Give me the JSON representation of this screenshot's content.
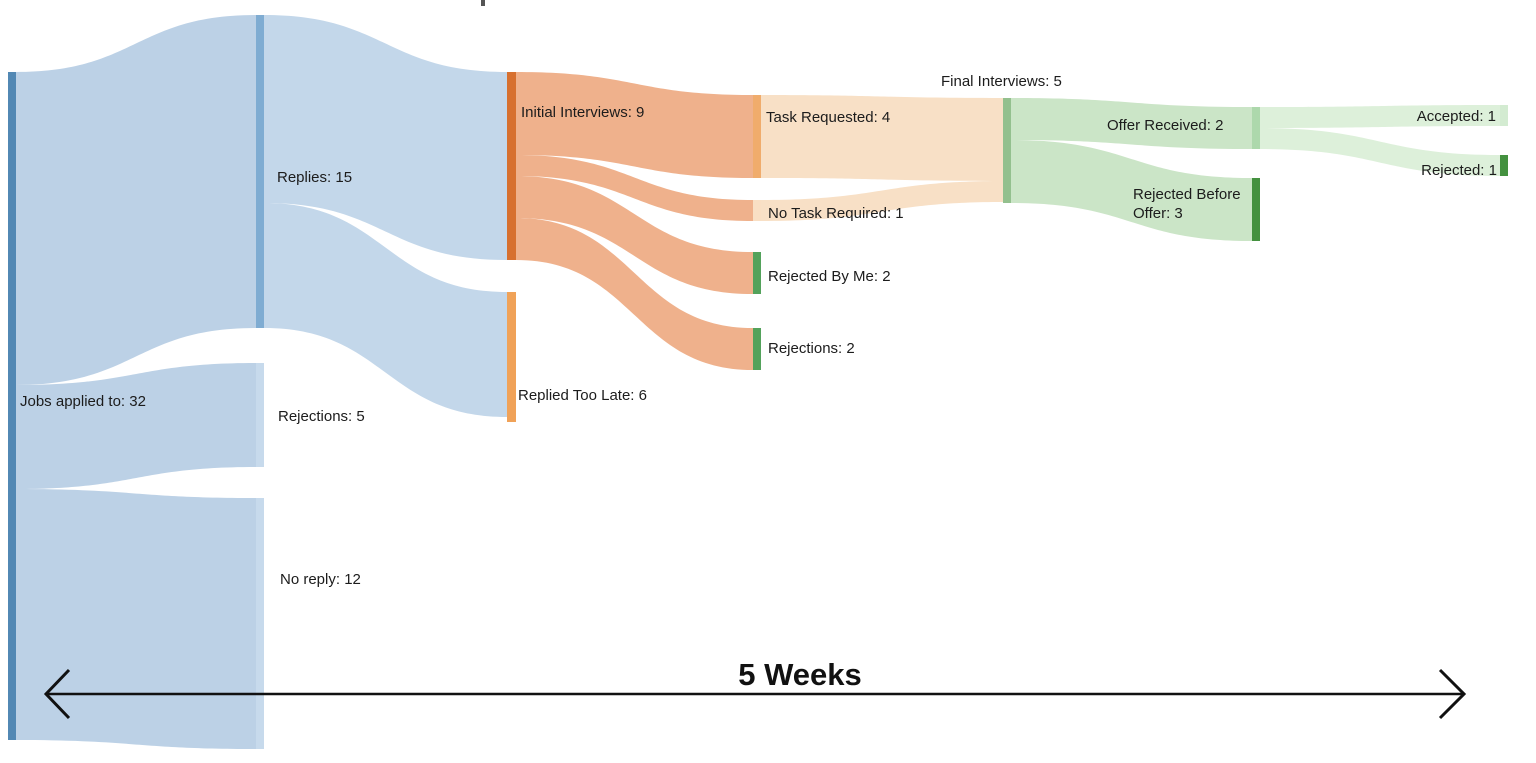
{
  "annotations": {
    "duration_label": "5 Weeks"
  },
  "chart_data": {
    "type": "sankey",
    "title": "",
    "orientation": "horizontal",
    "text_color": "#1C1C1C",
    "arrow_color": "#111111",
    "nodes": [
      {
        "id": "jobs",
        "label": "Jobs applied to: 32",
        "value": 32,
        "color": "#5288B4"
      },
      {
        "id": "replies",
        "label": "Replies: 15",
        "value": 15,
        "color": "#7FACD2"
      },
      {
        "id": "rejections5",
        "label": "Rejections: 5",
        "value": 5,
        "color": "#C7DAEC"
      },
      {
        "id": "noreply",
        "label": "No reply: 12",
        "value": 12,
        "color": "#C7DAEC"
      },
      {
        "id": "initial",
        "label": "Initial Interviews: 9",
        "value": 9,
        "color": "#D7702F"
      },
      {
        "id": "late",
        "label": "Replied Too Late: 6",
        "value": 6,
        "color": "#F0A258"
      },
      {
        "id": "task",
        "label": "Task Requested: 4",
        "value": 4,
        "color": "#F0AC6C"
      },
      {
        "id": "notask",
        "label": "No Task Required: 1",
        "value": 1,
        "color": "#F9DFC4"
      },
      {
        "id": "rejbyme",
        "label": "Rejected By Me: 2",
        "value": 2,
        "color": "#53A25B"
      },
      {
        "id": "rejections2",
        "label": "Rejections: 2",
        "value": 2,
        "color": "#53A25B"
      },
      {
        "id": "final",
        "label": "Final Interviews: 5",
        "value": 5,
        "color": "#93C08E"
      },
      {
        "id": "offer",
        "label": "Offer Received: 2",
        "value": 2,
        "color": "#ADD8AC"
      },
      {
        "id": "rejbefore",
        "label": "Rejected Before\nOffer: 3",
        "value": 3,
        "color": "#44913F"
      },
      {
        "id": "accepted",
        "label": "Accepted: 1",
        "value": 1,
        "color": "#D3EBD1"
      },
      {
        "id": "rejected",
        "label": "Rejected: 1",
        "value": 1,
        "color": "#44913F"
      }
    ],
    "links": [
      {
        "source": "jobs",
        "target": "replies",
        "value": 15,
        "color": "#BCD1E6"
      },
      {
        "source": "jobs",
        "target": "rejections5",
        "value": 5,
        "color": "#BCD1E6"
      },
      {
        "source": "jobs",
        "target": "noreply",
        "value": 12,
        "color": "#BCD1E6"
      },
      {
        "source": "replies",
        "target": "initial",
        "value": 9,
        "color": "#C3D7EA"
      },
      {
        "source": "replies",
        "target": "late",
        "value": 6,
        "color": "#C3D7EA"
      },
      {
        "source": "initial",
        "target": "task",
        "value": 4,
        "color": "#EFB18C"
      },
      {
        "source": "initial",
        "target": "notask",
        "value": 1,
        "color": "#EFB18C"
      },
      {
        "source": "initial",
        "target": "rejbyme",
        "value": 2,
        "color": "#EFB18C"
      },
      {
        "source": "initial",
        "target": "rejections2",
        "value": 2,
        "color": "#EFB18C"
      },
      {
        "source": "task",
        "target": "final",
        "value": 4,
        "color": "#F8E0C6"
      },
      {
        "source": "notask",
        "target": "final",
        "value": 1,
        "color": "#F8E0C6"
      },
      {
        "source": "final",
        "target": "offer",
        "value": 2,
        "color": "#CBE5C7"
      },
      {
        "source": "final",
        "target": "rejbefore",
        "value": 3,
        "color": "#CBE5C7"
      },
      {
        "source": "offer",
        "target": "accepted",
        "value": 1,
        "color": "#DDF0DA"
      },
      {
        "source": "offer",
        "target": "rejected",
        "value": 1,
        "color": "#DDF0DA"
      }
    ]
  }
}
